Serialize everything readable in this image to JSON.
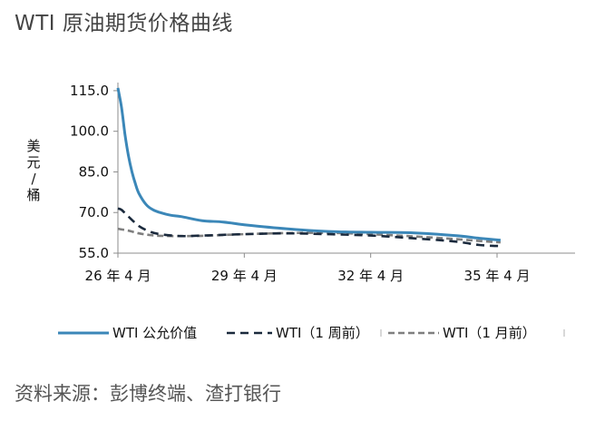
{
  "title": "WTI 原油期货价格曲线",
  "source": "资料来源：彭博终端、渣打银行",
  "colors": {
    "fair_value": "#3b87b8",
    "one_week_ago": "#1b2a3d",
    "one_month_ago": "#7f7f7f"
  },
  "chart_data": {
    "type": "line",
    "title": "WTI 原油期货价格曲线",
    "ylabel": "美元/桶",
    "xlabel": "",
    "ylim": [
      55,
      120
    ],
    "yticks": [
      55,
      70,
      85,
      100,
      115
    ],
    "ytick_labels": [
      "55.0",
      "70.0",
      "85.0",
      "100.0",
      "115.0"
    ],
    "xticks": [
      "26 年 4 月",
      "29 年 4 月",
      "32 年 4 月",
      "35 年 4 月"
    ],
    "x_unit": "contract month index (0 = 26 年 4 月)",
    "xlim": [
      0,
      109
    ],
    "grid": false,
    "legend_position": "bottom",
    "series": [
      {
        "name": "WTI 公允价值",
        "style": "solid",
        "color": "#3b87b8",
        "x": [
          0,
          1,
          2,
          3,
          4,
          5,
          6,
          8,
          10,
          12,
          15,
          18,
          24,
          30,
          36,
          48,
          60,
          72,
          84,
          96,
          103,
          109
        ],
        "y": [
          116,
          109,
          99,
          91,
          85,
          80.5,
          77,
          73,
          71,
          70,
          69,
          68.5,
          67,
          66.5,
          65.5,
          64,
          63,
          62.7,
          62.5,
          61.5,
          60.5,
          59.8
        ]
      },
      {
        "name": "WTI（1 周前）",
        "style": "dashed",
        "color": "#1b2a3d",
        "x": [
          0,
          1,
          3,
          6,
          9,
          12,
          18,
          24,
          36,
          48,
          60,
          72,
          84,
          96,
          103,
          109
        ],
        "y": [
          71.5,
          71,
          68.5,
          65,
          63,
          62,
          61.3,
          61.5,
          62,
          62.3,
          62,
          61.5,
          60.5,
          59.3,
          58,
          57.6
        ]
      },
      {
        "name": "WTI（1 月前）",
        "style": "dashed",
        "color": "#7f7f7f",
        "x": [
          0,
          3,
          6,
          9,
          12,
          18,
          24,
          36,
          48,
          60,
          72,
          84,
          96,
          103,
          109
        ],
        "y": [
          64,
          63.3,
          62.3,
          61.7,
          61.4,
          61.3,
          61.4,
          62,
          62.4,
          62.5,
          62,
          61.2,
          60.2,
          59.5,
          59
        ]
      }
    ]
  }
}
